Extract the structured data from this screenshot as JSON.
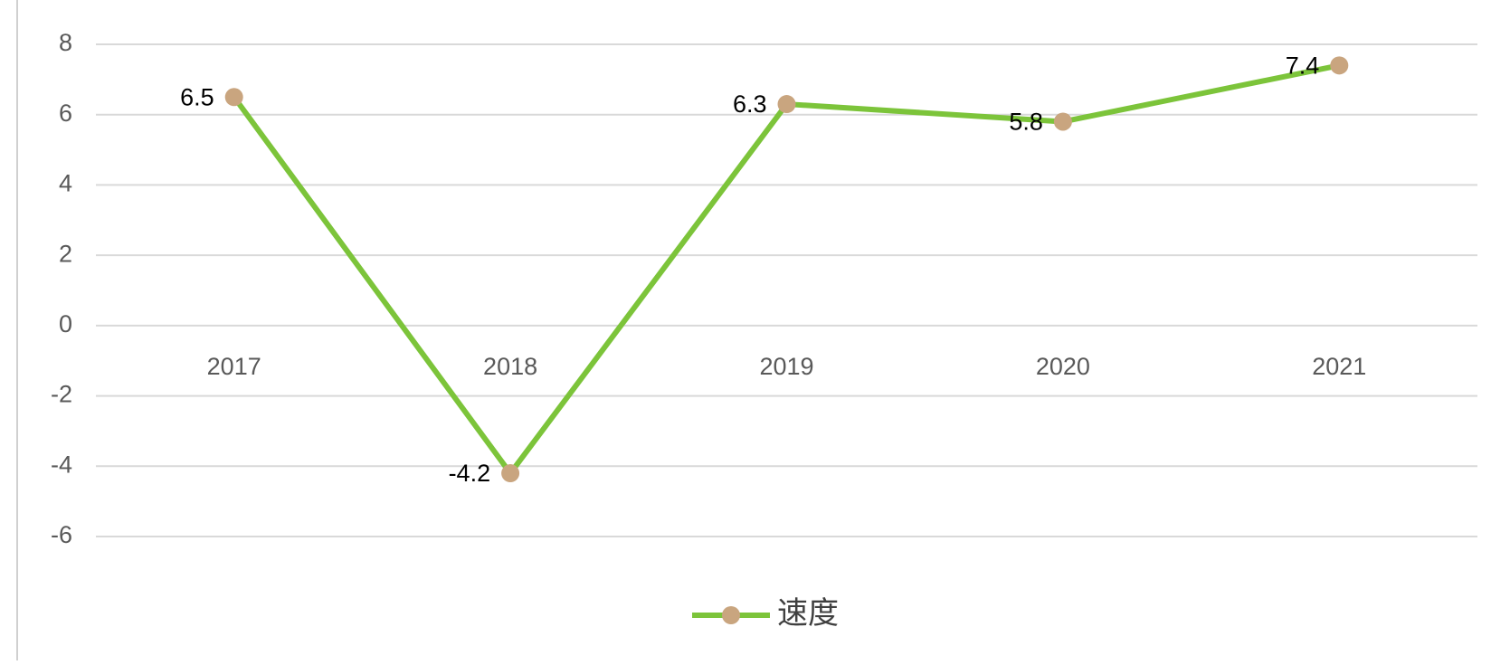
{
  "chart_data": {
    "type": "line",
    "categories": [
      "2017",
      "2018",
      "2019",
      "2020",
      "2021"
    ],
    "series": [
      {
        "name": "速度",
        "color": "#7cc43a",
        "marker_color": "#c9a57f",
        "values": [
          6.5,
          -4.2,
          6.3,
          5.8,
          7.4
        ]
      }
    ],
    "ylim": [
      -6,
      8
    ],
    "yticks": [
      -6,
      -4,
      -2,
      0,
      2,
      4,
      6,
      8
    ],
    "grid": true,
    "legend": "bottom"
  }
}
